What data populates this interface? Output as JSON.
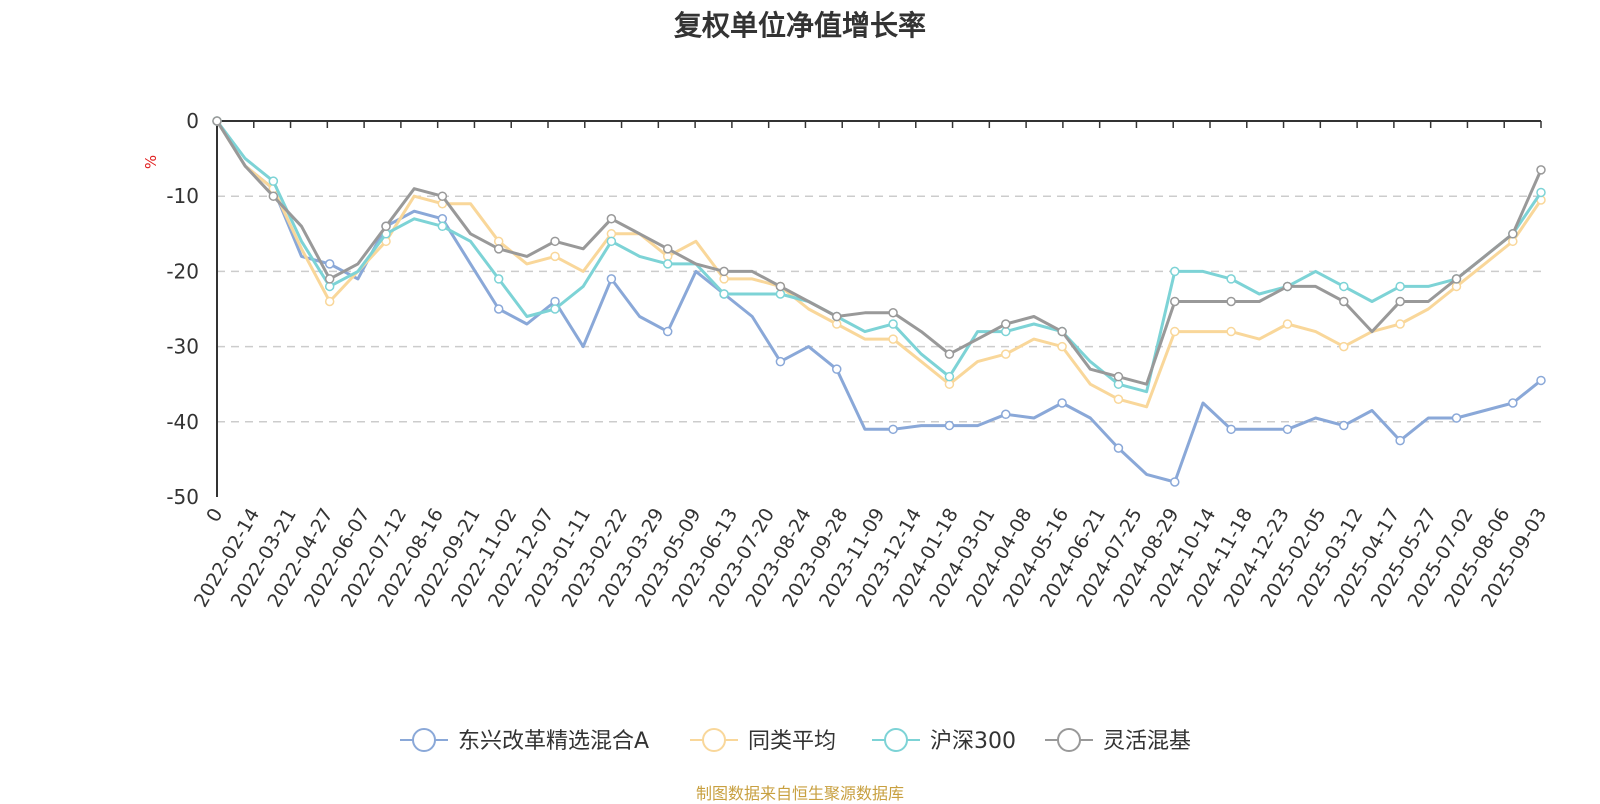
{
  "chart_data": {
    "type": "line",
    "title": "复权单位净值增长率",
    "unit_label": "%",
    "ylim": [
      -50,
      0
    ],
    "y_ticks": [
      0,
      -10,
      -20,
      -30,
      -40,
      -50
    ],
    "x_ticks": [
      "0",
      "2022-02-14",
      "2022-03-21",
      "2022-04-27",
      "2022-06-07",
      "2022-07-12",
      "2022-08-16",
      "2022-09-21",
      "2022-11-02",
      "2022-12-07",
      "2023-01-11",
      "2023-02-22",
      "2023-03-29",
      "2023-05-09",
      "2023-06-13",
      "2023-07-20",
      "2023-08-24",
      "2023-09-28",
      "2023-11-09",
      "2023-12-14",
      "2024-01-18",
      "2024-03-01",
      "2024-04-08",
      "2024-05-16",
      "2024-06-21",
      "2024-07-25",
      "2024-08-29",
      "2024-10-14",
      "2024-11-18",
      "2024-12-23",
      "2025-02-05",
      "2025-03-12",
      "2025-04-17",
      "2025-05-27",
      "2025-07-02",
      "2025-08-06",
      "2025-09-03"
    ],
    "grid": "dashed horizontal",
    "legend_position": "bottom",
    "series": [
      {
        "name": "东兴改革精选混合A",
        "color": "#8aa8d8",
        "values": [
          0,
          -6,
          -9,
          -18,
          -19,
          -21,
          -14,
          -12,
          -13,
          -19,
          -25,
          -27,
          -24,
          -30,
          -21,
          -26,
          -28,
          -20,
          -23,
          -26,
          -32,
          -30,
          -33,
          -41,
          -41,
          -40.5,
          -40.5,
          -40.5,
          -39,
          -39.5,
          -37.5,
          -39.5,
          -43.5,
          -47,
          -48,
          -37.5,
          -41,
          -41,
          -41,
          -39.5,
          -40.5,
          -38.5,
          -42.5,
          -39.5,
          -39.5,
          -38.5,
          -37.5,
          -34.5
        ]
      },
      {
        "name": "同类平均",
        "color": "#f9d79a",
        "values": [
          0,
          -6,
          -9,
          -17,
          -24,
          -20,
          -16,
          -10,
          -11,
          -11,
          -16,
          -19,
          -18,
          -20,
          -15,
          -15,
          -18,
          -16,
          -21,
          -21,
          -22,
          -25,
          -27,
          -29,
          -29,
          -32,
          -35,
          -32,
          -31,
          -29,
          -30,
          -35,
          -37,
          -38,
          -28,
          -28,
          -28,
          -29,
          -27,
          -28,
          -30,
          -28,
          -27,
          -25,
          -22,
          -19,
          -16,
          -10.5
        ]
      },
      {
        "name": "沪深300",
        "color": "#7dd3d6",
        "values": [
          0,
          -5,
          -8,
          -16,
          -22,
          -20,
          -15,
          -13,
          -14,
          -16,
          -21,
          -26,
          -25,
          -22,
          -16,
          -18,
          -19,
          -19,
          -23,
          -23,
          -23,
          -24,
          -26,
          -28,
          -27,
          -31,
          -34,
          -28,
          -28,
          -27,
          -28,
          -32,
          -35,
          -36,
          -20,
          -20,
          -21,
          -23,
          -22,
          -20,
          -22,
          -24,
          -22,
          -22,
          -21,
          -18,
          -15,
          -9.5
        ]
      },
      {
        "name": "灵活混基",
        "color": "#999999",
        "values": [
          0,
          -6,
          -10,
          -14,
          -21,
          -19,
          -14,
          -9,
          -10,
          -15,
          -17,
          -18,
          -16,
          -17,
          -13,
          -15,
          -17,
          -19,
          -20,
          -20,
          -22,
          -24,
          -26,
          -25.5,
          -25.5,
          -28,
          -31,
          -29,
          -27,
          -26,
          -28,
          -33,
          -34,
          -35,
          -24,
          -24,
          -24,
          -24,
          -22,
          -22,
          -24,
          -28,
          -24,
          -24,
          -21,
          -18,
          -15,
          -6.5
        ]
      }
    ]
  },
  "source_note": "制图数据来自恒生聚源数据库"
}
